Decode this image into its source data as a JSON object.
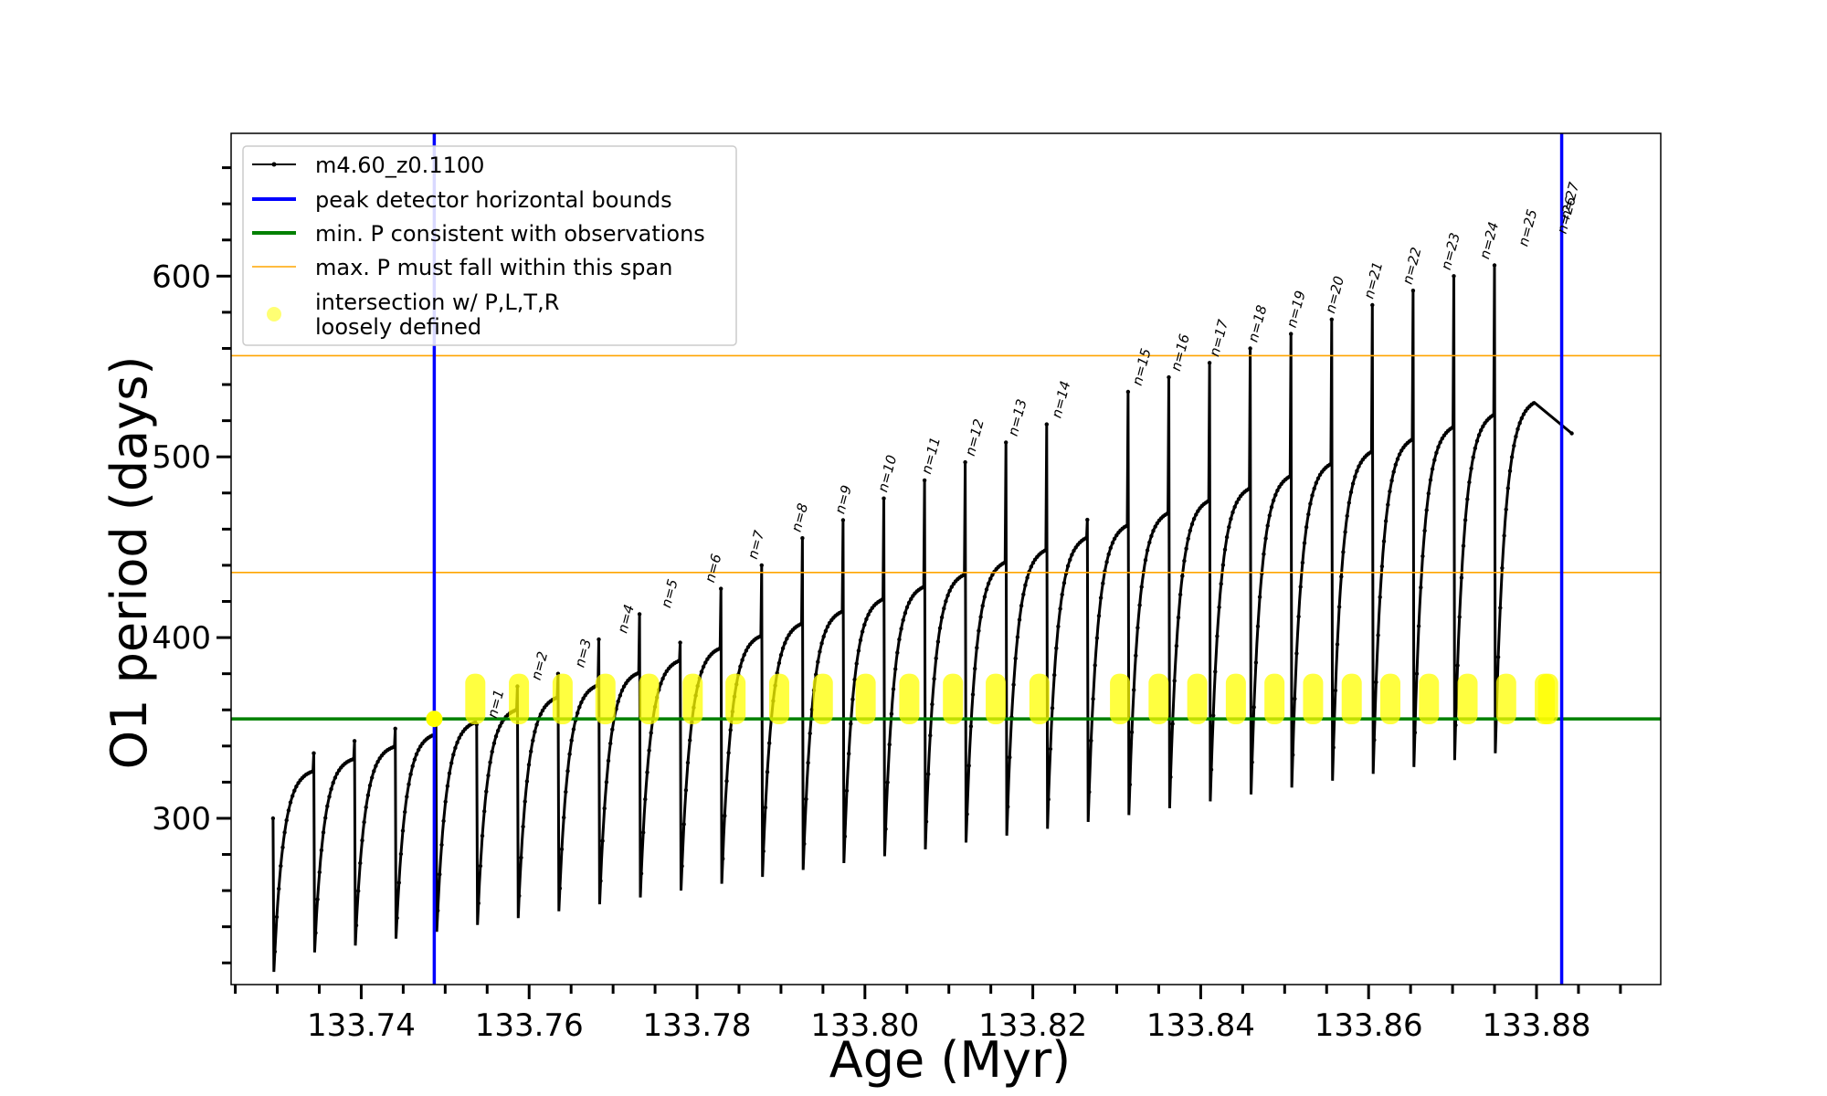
{
  "chart_data": {
    "type": "line",
    "xlabel": "Age (Myr)",
    "ylabel": "O1 period (days)",
    "xlim": [
      133.7245,
      133.8948
    ],
    "ylim": [
      208,
      679
    ],
    "x_ticks": [
      {
        "value": 133.74,
        "label": "133.74"
      },
      {
        "value": 133.76,
        "label": "133.76"
      },
      {
        "value": 133.78,
        "label": "133.78"
      },
      {
        "value": 133.8,
        "label": "133.80"
      },
      {
        "value": 133.82,
        "label": "133.82"
      },
      {
        "value": 133.84,
        "label": "133.84"
      },
      {
        "value": 133.86,
        "label": "133.86"
      },
      {
        "value": 133.88,
        "label": "133.88"
      }
    ],
    "y_ticks": [
      {
        "value": 300,
        "label": "300"
      },
      {
        "value": 400,
        "label": "400"
      },
      {
        "value": 500,
        "label": "500"
      },
      {
        "value": 600,
        "label": "600"
      }
    ],
    "grid": false,
    "legend_position": "top-left",
    "legend": [
      {
        "label": "m4.60_z0.1100",
        "style": "line-dot",
        "color": "#000000"
      },
      {
        "label": "peak detector horizontal bounds",
        "style": "line",
        "color": "#0000ff"
      },
      {
        "label": "min. P consistent with observations",
        "style": "line",
        "color": "#008000"
      },
      {
        "label": "max. P must fall within this span",
        "style": "thin-line",
        "color": "#ffa500"
      },
      {
        "label": "intersection w/ P,L,T,R",
        "label2": "loosely defined",
        "style": "marker",
        "color": "#ffff00"
      }
    ],
    "series_name": "m4.60_z0.1100",
    "series_color": "#000000",
    "pulse_cycle": {
      "start_age": 133.7295,
      "first_peak": 300,
      "first_trough": 215,
      "period_myr": 0.00485,
      "plateau_start": 326,
      "plateau_slope_per_cycle": 6.8,
      "trough_start": 222,
      "trough_slope_per_cycle": 3.8,
      "end_age": 133.8842,
      "end_value": 513
    },
    "peak_detector_bounds": [
      133.7487,
      133.883
    ],
    "min_period_line": 355,
    "max_period_span": [
      436,
      556
    ],
    "intersection_color": "#ffff00",
    "intersection_band": [
      352,
      380
    ],
    "labeled_peaks": [
      {
        "label": "n=1",
        "x": 133.7548,
        "y": 352
      },
      {
        "label": "n=2",
        "x": 133.76,
        "y": 373
      },
      {
        "label": "n=3",
        "x": 133.7652,
        "y": 380
      },
      {
        "label": "n=4",
        "x": 133.7703,
        "y": 399
      },
      {
        "label": "n=5",
        "x": 133.7755,
        "y": 413
      },
      {
        "label": "n=6",
        "x": 133.7807,
        "y": 427
      },
      {
        "label": "n=7",
        "x": 133.7858,
        "y": 440
      },
      {
        "label": "n=8",
        "x": 133.791,
        "y": 455
      },
      {
        "label": "n=9",
        "x": 133.7962,
        "y": 465
      },
      {
        "label": "n=10",
        "x": 133.8013,
        "y": 477
      },
      {
        "label": "n=11",
        "x": 133.8065,
        "y": 487
      },
      {
        "label": "n=12",
        "x": 133.8117,
        "y": 497
      },
      {
        "label": "n=13",
        "x": 133.8168,
        "y": 508
      },
      {
        "label": "n=14",
        "x": 133.822,
        "y": 518
      },
      {
        "label": "n=15",
        "x": 133.8316,
        "y": 536
      },
      {
        "label": "n=16",
        "x": 133.8362,
        "y": 544
      },
      {
        "label": "n=17",
        "x": 133.8408,
        "y": 552
      },
      {
        "label": "n=18",
        "x": 133.8454,
        "y": 560
      },
      {
        "label": "n=19",
        "x": 133.85,
        "y": 568
      },
      {
        "label": "n=20",
        "x": 133.8546,
        "y": 576
      },
      {
        "label": "n=21",
        "x": 133.8592,
        "y": 584
      },
      {
        "label": "n=22",
        "x": 133.8638,
        "y": 592
      },
      {
        "label": "n=23",
        "x": 133.8684,
        "y": 600
      },
      {
        "label": "n=24",
        "x": 133.873,
        "y": 606
      },
      {
        "label": "n=25",
        "x": 133.8776,
        "y": 613
      },
      {
        "label": "n=26",
        "x": 133.8822,
        "y": 620
      },
      {
        "label": "n=27",
        "x": 133.8826,
        "y": 628
      }
    ]
  }
}
